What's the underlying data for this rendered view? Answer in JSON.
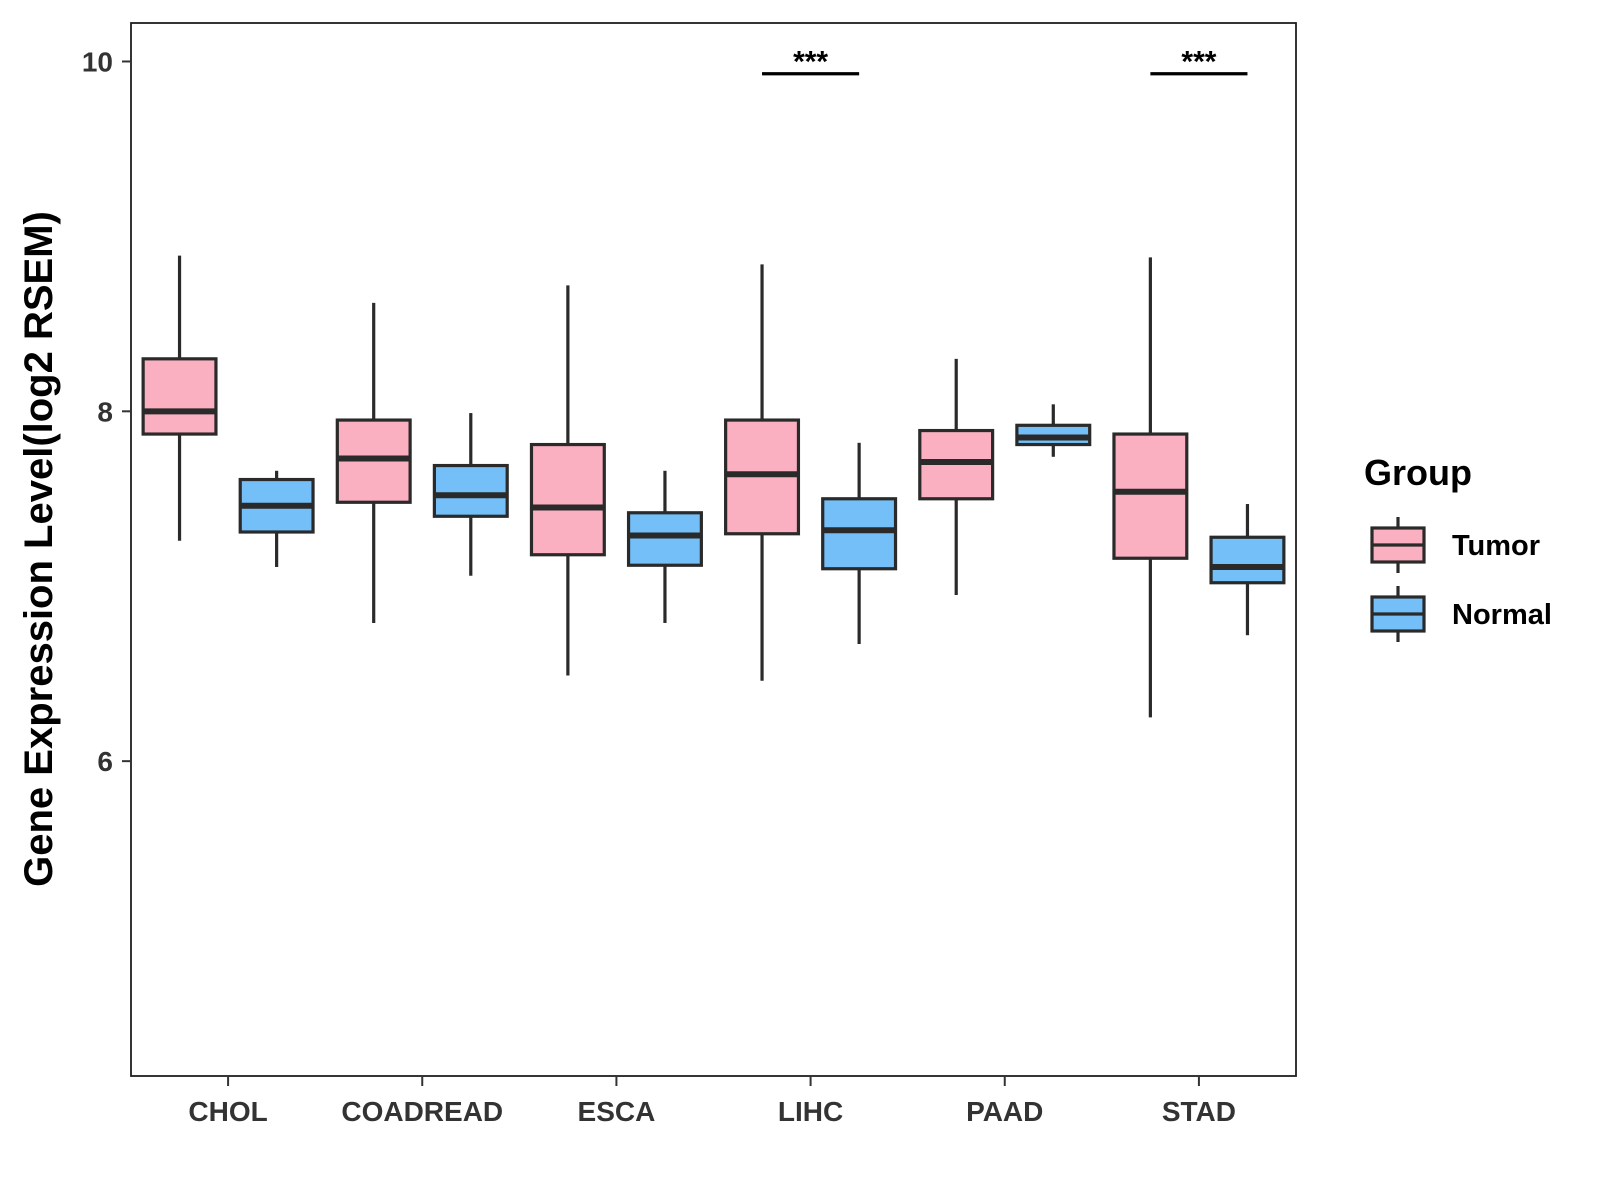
{
  "chart_data": {
    "type": "boxplot",
    "title": "",
    "xlabel": "",
    "ylabel": "Gene Expression Level(log2 RSEM)",
    "ylim": [
      4.2,
      10.22
    ],
    "y_ticks": [
      6,
      8,
      10
    ],
    "y_tick_labels": [
      "6",
      "8",
      "10"
    ],
    "categories": [
      "CHOL",
      "COADREAD",
      "ESCA",
      "LIHC",
      "PAAD",
      "STAD"
    ],
    "legend": {
      "title": "Group",
      "position": "right",
      "entries": [
        {
          "name": "Tumor",
          "color": "#FBB0C2"
        },
        {
          "name": "Normal",
          "color": "#74BFF7"
        }
      ]
    },
    "series": [
      {
        "name": "Tumor",
        "color": "#FBB0C2",
        "boxes": [
          {
            "min": 7.26,
            "q1": 7.87,
            "median": 8.0,
            "q3": 8.3,
            "max": 8.89
          },
          {
            "min": 6.79,
            "q1": 7.48,
            "median": 7.73,
            "q3": 7.95,
            "max": 8.62
          },
          {
            "min": 6.49,
            "q1": 7.18,
            "median": 7.45,
            "q3": 7.81,
            "max": 8.72
          },
          {
            "min": 6.46,
            "q1": 7.3,
            "median": 7.64,
            "q3": 7.95,
            "max": 8.84
          },
          {
            "min": 6.95,
            "q1": 7.5,
            "median": 7.71,
            "q3": 7.89,
            "max": 8.3
          },
          {
            "min": 6.25,
            "q1": 7.16,
            "median": 7.54,
            "q3": 7.87,
            "max": 8.88
          }
        ]
      },
      {
        "name": "Normal",
        "color": "#74BFF7",
        "boxes": [
          {
            "min": 7.11,
            "q1": 7.31,
            "median": 7.46,
            "q3": 7.61,
            "max": 7.66
          },
          {
            "min": 7.06,
            "q1": 7.4,
            "median": 7.52,
            "q3": 7.69,
            "max": 7.99
          },
          {
            "min": 6.79,
            "q1": 7.12,
            "median": 7.29,
            "q3": 7.42,
            "max": 7.66
          },
          {
            "min": 6.67,
            "q1": 7.1,
            "median": 7.32,
            "q3": 7.5,
            "max": 7.82
          },
          {
            "min": 7.74,
            "q1": 7.81,
            "median": 7.85,
            "q3": 7.92,
            "max": 8.04
          },
          {
            "min": 6.72,
            "q1": 7.02,
            "median": 7.11,
            "q3": 7.28,
            "max": 7.47
          }
        ]
      }
    ],
    "significance": [
      {
        "category": "LIHC",
        "label": "***",
        "y": 9.93
      },
      {
        "category": "STAD",
        "label": "***",
        "y": 9.93
      }
    ]
  }
}
